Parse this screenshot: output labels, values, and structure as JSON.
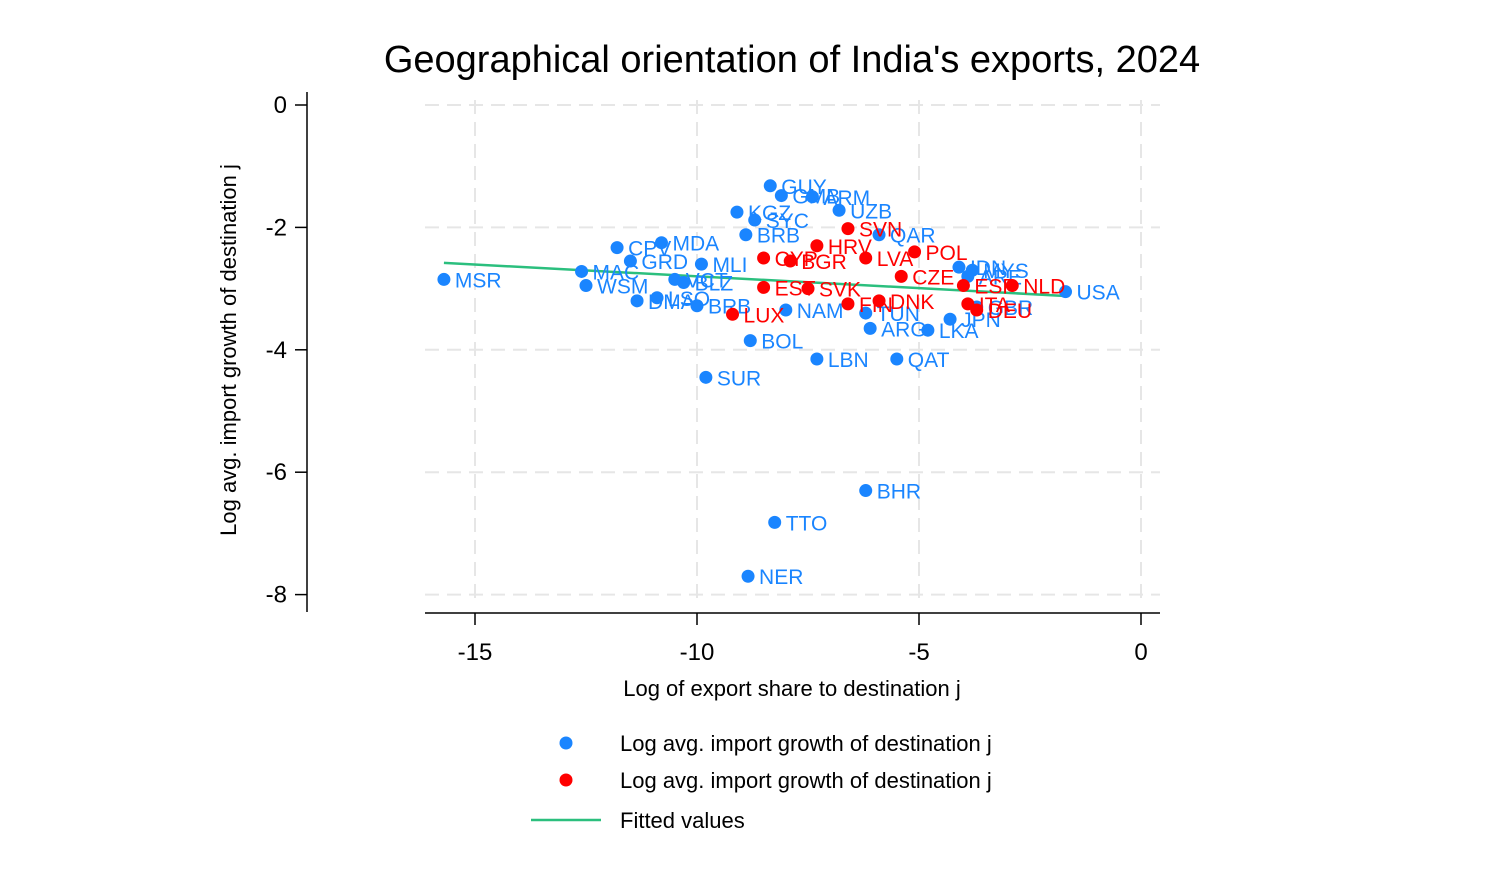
{
  "chart_data": {
    "type": "scatter",
    "title": "Geographical orientation of India's exports, 2024",
    "xlabel": "Log of export share to destination j",
    "ylabel": "Log avg. import growth of destination j",
    "xlim": [
      -16.1,
      0.4
    ],
    "ylim": [
      -8.3,
      0.2
    ],
    "xticks": [
      -15,
      -10,
      -5,
      0
    ],
    "yticks": [
      0,
      -2,
      -4,
      -6,
      -8
    ],
    "x_tick_labels": [
      "-15",
      "-10",
      "-5",
      "0"
    ],
    "y_tick_labels": [
      "0",
      "-2",
      "-4",
      "-6",
      "-8"
    ],
    "grid": true,
    "legend_position": "bottom",
    "colors": {
      "series_blue": "#1a85ff",
      "series_red": "#ff0000",
      "fit_line": "#2bbf7e"
    },
    "series": [
      {
        "name": "Log avg. import growth of destination j",
        "color": "#1a85ff",
        "points": [
          {
            "label": "MSR",
            "x": -15.7,
            "y": -2.85
          },
          {
            "label": "USA",
            "x": -1.7,
            "y": -3.05
          },
          {
            "label": "GUY",
            "x": -8.35,
            "y": -1.32
          },
          {
            "label": "ARM",
            "x": -7.4,
            "y": -1.5
          },
          {
            "label": "GMB",
            "x": -8.1,
            "y": -1.48
          },
          {
            "label": "UZB",
            "x": -6.8,
            "y": -1.72
          },
          {
            "label": "KGZ",
            "x": -9.1,
            "y": -1.75
          },
          {
            "label": "SYC",
            "x": -8.7,
            "y": -1.88
          },
          {
            "label": "BRB",
            "x": -8.9,
            "y": -2.12
          },
          {
            "label": "QAR",
            "x": -5.9,
            "y": -2.12
          },
          {
            "label": "CPV",
            "x": -11.8,
            "y": -2.33
          },
          {
            "label": "MDA",
            "x": -10.8,
            "y": -2.25
          },
          {
            "label": "GRD",
            "x": -11.5,
            "y": -2.55
          },
          {
            "label": "MAC",
            "x": -12.6,
            "y": -2.72
          },
          {
            "label": "WSM",
            "x": -12.5,
            "y": -2.95
          },
          {
            "label": "DMA",
            "x": -11.35,
            "y": -3.2
          },
          {
            "label": "VCT",
            "x": -10.5,
            "y": -2.85
          },
          {
            "label": "MLI",
            "x": -9.9,
            "y": -2.6
          },
          {
            "label": "BLZ",
            "x": -10.3,
            "y": -2.9
          },
          {
            "label": "LSO",
            "x": -10.9,
            "y": -3.15
          },
          {
            "label": "BRB",
            "x": -10.0,
            "y": -3.28
          },
          {
            "label": "NAM",
            "x": -8.0,
            "y": -3.35
          },
          {
            "label": "TUN",
            "x": -6.2,
            "y": -3.4
          },
          {
            "label": "ARG",
            "x": -6.1,
            "y": -3.65
          },
          {
            "label": "LKA",
            "x": -4.8,
            "y": -3.68
          },
          {
            "label": "JPN",
            "x": -4.3,
            "y": -3.5
          },
          {
            "label": "GBR",
            "x": -3.7,
            "y": -3.3
          },
          {
            "label": "ARE",
            "x": -3.9,
            "y": -2.8
          },
          {
            "label": "IDN",
            "x": -4.1,
            "y": -2.65
          },
          {
            "label": "MYS",
            "x": -3.8,
            "y": -2.7
          },
          {
            "label": "BOL",
            "x": -8.8,
            "y": -3.85
          },
          {
            "label": "LBN",
            "x": -7.3,
            "y": -4.15
          },
          {
            "label": "QAT",
            "x": -5.5,
            "y": -4.15
          },
          {
            "label": "SUR",
            "x": -9.8,
            "y": -4.45
          },
          {
            "label": "BHR",
            "x": -6.2,
            "y": -6.3
          },
          {
            "label": "TTO",
            "x": -8.25,
            "y": -6.82
          },
          {
            "label": "NER",
            "x": -8.85,
            "y": -7.7
          }
        ]
      },
      {
        "name": "Log avg. import growth of destination j",
        "color": "#ff0000",
        "points": [
          {
            "label": "SVN",
            "x": -6.6,
            "y": -2.02
          },
          {
            "label": "HRV",
            "x": -7.3,
            "y": -2.3
          },
          {
            "label": "POL",
            "x": -5.1,
            "y": -2.4
          },
          {
            "label": "CYP",
            "x": -8.5,
            "y": -2.5
          },
          {
            "label": "BGR",
            "x": -7.9,
            "y": -2.55
          },
          {
            "label": "LVA",
            "x": -6.2,
            "y": -2.5
          },
          {
            "label": "CZE",
            "x": -5.4,
            "y": -2.8
          },
          {
            "label": "ESP",
            "x": -4.0,
            "y": -2.95
          },
          {
            "label": "NLD",
            "x": -2.9,
            "y": -2.95
          },
          {
            "label": "ITA",
            "x": -3.9,
            "y": -3.25
          },
          {
            "label": "EST",
            "x": -8.5,
            "y": -2.98
          },
          {
            "label": "SVK",
            "x": -7.5,
            "y": -3.0
          },
          {
            "label": "FIN",
            "x": -6.6,
            "y": -3.25
          },
          {
            "label": "DNK",
            "x": -5.9,
            "y": -3.2
          },
          {
            "label": "DEU",
            "x": -3.7,
            "y": -3.35
          },
          {
            "label": "LUX",
            "x": -9.2,
            "y": -3.42
          }
        ]
      },
      {
        "name": "Fitted values",
        "color": "#2bbf7e",
        "line": [
          {
            "x": -15.7,
            "y": -2.58
          },
          {
            "x": -1.7,
            "y": -3.12
          }
        ]
      }
    ]
  },
  "legend": {
    "items": [
      {
        "label": "Log avg. import growth of destination j",
        "color": "#1a85ff"
      },
      {
        "label": "Log avg. import growth of destination j",
        "color": "#ff0000"
      },
      {
        "label": "Fitted values",
        "color": "#2bbf7e"
      }
    ]
  }
}
